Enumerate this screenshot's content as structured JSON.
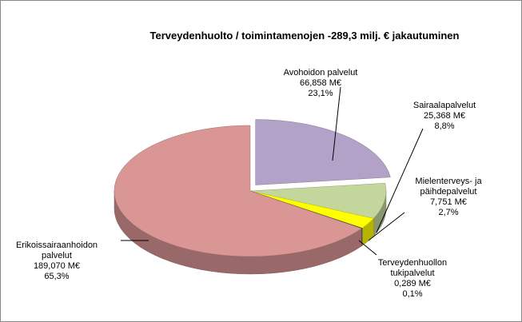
{
  "chart_data": {
    "type": "pie",
    "title": "Terveydenhuolto / toimintamenojen -289,3 milj. € jakautuminen",
    "categories": [
      "Avohoidon palvelut",
      "Sairaalapalvelut",
      "Mielenterveys- ja päihdepalvelut",
      "Terveydenhuollon tukipalvelut",
      "Erikoissairaanhoidon palvelut"
    ],
    "values": [
      23.1,
      8.8,
      2.7,
      0.1,
      65.3
    ],
    "value_labels": [
      "23,1%",
      "8,8%",
      "2,7%",
      "0,1%",
      "65,3%"
    ],
    "amounts": [
      66.858,
      25.368,
      7.751,
      0.289,
      189.07
    ],
    "amount_labels": [
      "66,858 M€",
      "25,368 M€",
      "7,751 M€",
      "0,289 M€",
      "189,070 M€"
    ],
    "colors": [
      "#b3a2c7",
      "#c3d69b",
      "#ffff00",
      "#1f3a60",
      "#d99694"
    ]
  }
}
